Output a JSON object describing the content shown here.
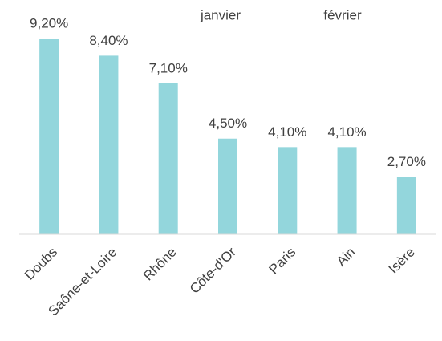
{
  "chart_data": {
    "type": "bar",
    "legend_labels": [
      "janvier",
      "février"
    ],
    "categories": [
      "Doubs",
      "Saône-et-Loire",
      "Rhône",
      "Côte-d'Or",
      "Paris",
      "Ain",
      "Isère"
    ],
    "values": [
      9.2,
      8.4,
      7.1,
      4.5,
      4.1,
      4.1,
      2.7
    ],
    "value_labels": [
      "9,20%",
      "8,40%",
      "7,10%",
      "4,50%",
      "4,10%",
      "4,10%",
      "2,70%"
    ],
    "color": "#93d6dc",
    "ylim": [
      0,
      10
    ]
  }
}
